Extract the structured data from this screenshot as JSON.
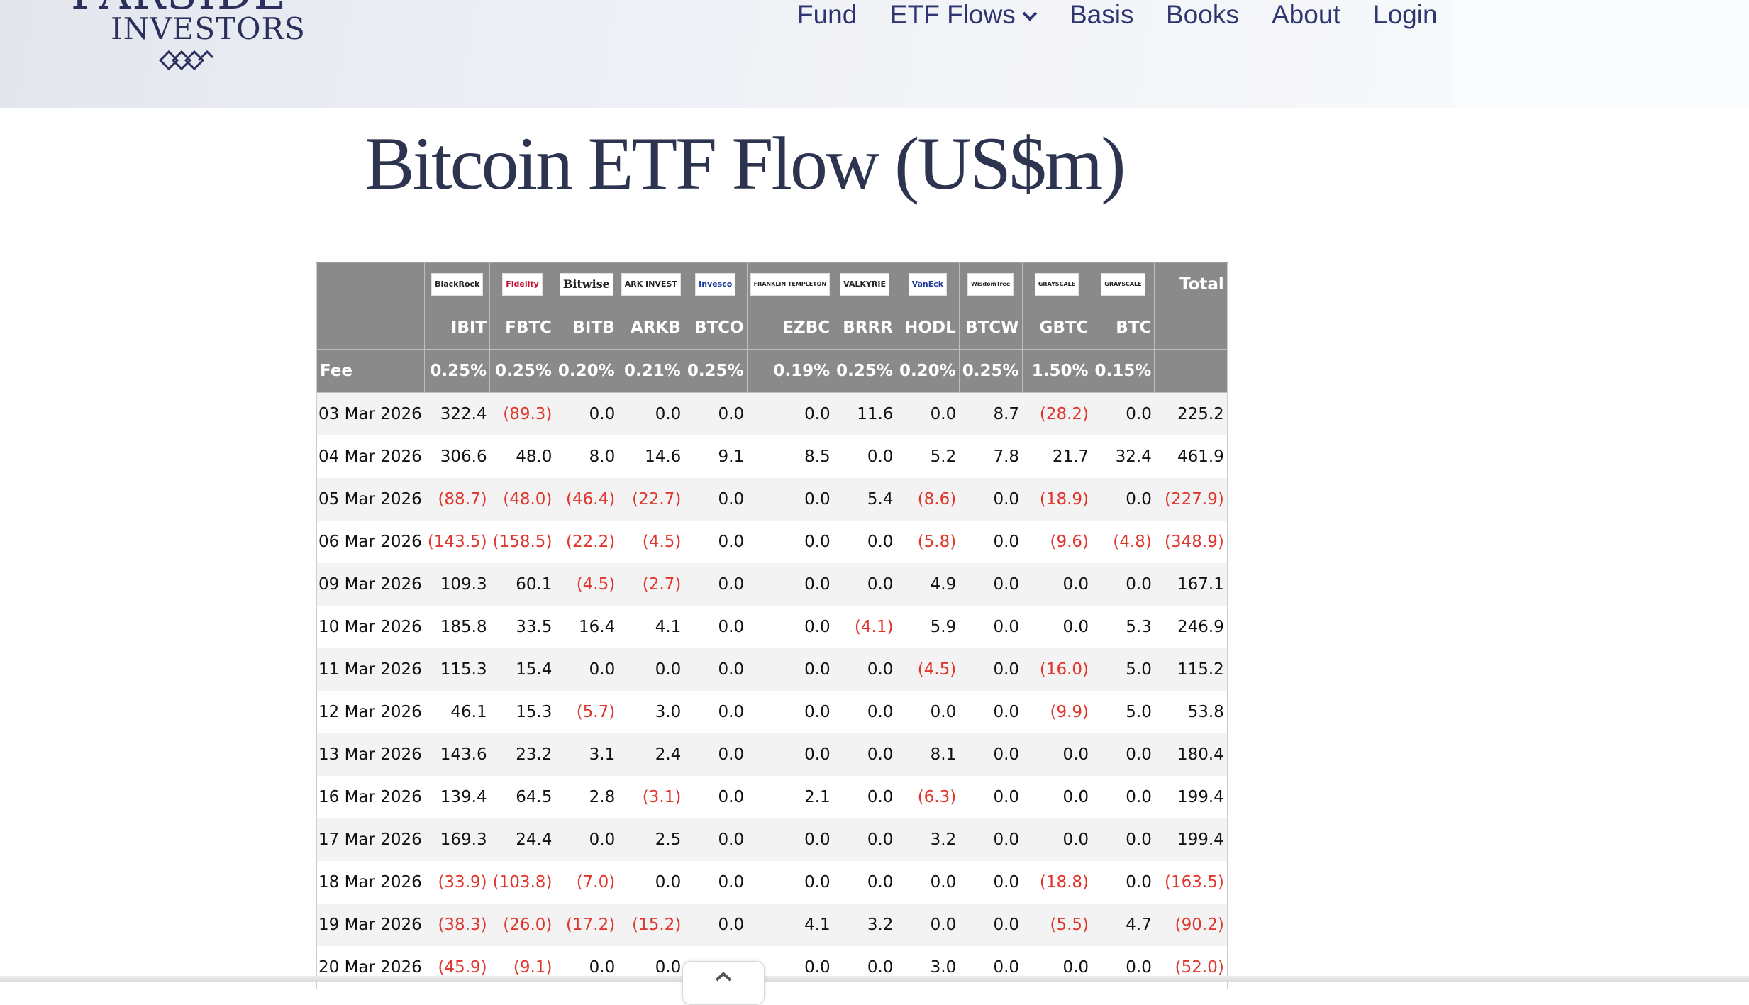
{
  "brand": {
    "name_top": "FARSIDE",
    "name_sub": "INVESTORS"
  },
  "nav": [
    {
      "label": "Fund"
    },
    {
      "label": "ETF Flows",
      "has_dropdown": true
    },
    {
      "label": "Basis"
    },
    {
      "label": "Books"
    },
    {
      "label": "About"
    },
    {
      "label": "Login"
    }
  ],
  "page_title": "Bitcoin ETF Flow (US$m)",
  "table": {
    "issuers": [
      "BlackRock",
      "Fidelity",
      "Bitwise",
      "ARK INVEST",
      "Invesco",
      "FRANKLIN TEMPLETON",
      "VALKYRIE",
      "VanEck",
      "WisdomTree",
      "GRAYSCALE",
      "GRAYSCALE"
    ],
    "total_label": "Total",
    "tickers": [
      "IBIT",
      "FBTC",
      "BITB",
      "ARKB",
      "BTCO",
      "EZBC",
      "BRRR",
      "HODL",
      "BTCW",
      "GBTC",
      "BTC"
    ],
    "fee_label": "Fee",
    "fees": [
      "0.25%",
      "0.25%",
      "0.20%",
      "0.21%",
      "0.25%",
      "0.19%",
      "0.25%",
      "0.20%",
      "0.25%",
      "1.50%",
      "0.15%"
    ],
    "rows": [
      {
        "date": "03 Mar 2026",
        "values": [
          "322.4",
          "(89.3)",
          "0.0",
          "0.0",
          "0.0",
          "0.0",
          "11.6",
          "0.0",
          "8.7",
          "(28.2)",
          "0.0"
        ],
        "total": "225.2"
      },
      {
        "date": "04 Mar 2026",
        "values": [
          "306.6",
          "48.0",
          "8.0",
          "14.6",
          "9.1",
          "8.5",
          "0.0",
          "5.2",
          "7.8",
          "21.7",
          "32.4"
        ],
        "total": "461.9"
      },
      {
        "date": "05 Mar 2026",
        "values": [
          "(88.7)",
          "(48.0)",
          "(46.4)",
          "(22.7)",
          "0.0",
          "0.0",
          "5.4",
          "(8.6)",
          "0.0",
          "(18.9)",
          "0.0"
        ],
        "total": "(227.9)"
      },
      {
        "date": "06 Mar 2026",
        "values": [
          "(143.5)",
          "(158.5)",
          "(22.2)",
          "(4.5)",
          "0.0",
          "0.0",
          "0.0",
          "(5.8)",
          "0.0",
          "(9.6)",
          "(4.8)"
        ],
        "total": "(348.9)"
      },
      {
        "date": "09 Mar 2026",
        "values": [
          "109.3",
          "60.1",
          "(4.5)",
          "(2.7)",
          "0.0",
          "0.0",
          "0.0",
          "4.9",
          "0.0",
          "0.0",
          "0.0"
        ],
        "total": "167.1"
      },
      {
        "date": "10 Mar 2026",
        "values": [
          "185.8",
          "33.5",
          "16.4",
          "4.1",
          "0.0",
          "0.0",
          "(4.1)",
          "5.9",
          "0.0",
          "0.0",
          "5.3"
        ],
        "total": "246.9"
      },
      {
        "date": "11 Mar 2026",
        "values": [
          "115.3",
          "15.4",
          "0.0",
          "0.0",
          "0.0",
          "0.0",
          "0.0",
          "(4.5)",
          "0.0",
          "(16.0)",
          "5.0"
        ],
        "total": "115.2"
      },
      {
        "date": "12 Mar 2026",
        "values": [
          "46.1",
          "15.3",
          "(5.7)",
          "3.0",
          "0.0",
          "0.0",
          "0.0",
          "0.0",
          "0.0",
          "(9.9)",
          "5.0"
        ],
        "total": "53.8"
      },
      {
        "date": "13 Mar 2026",
        "values": [
          "143.6",
          "23.2",
          "3.1",
          "2.4",
          "0.0",
          "0.0",
          "0.0",
          "8.1",
          "0.0",
          "0.0",
          "0.0"
        ],
        "total": "180.4"
      },
      {
        "date": "16 Mar 2026",
        "values": [
          "139.4",
          "64.5",
          "2.8",
          "(3.1)",
          "0.0",
          "2.1",
          "0.0",
          "(6.3)",
          "0.0",
          "0.0",
          "0.0"
        ],
        "total": "199.4"
      },
      {
        "date": "17 Mar 2026",
        "values": [
          "169.3",
          "24.4",
          "0.0",
          "2.5",
          "0.0",
          "0.0",
          "0.0",
          "3.2",
          "0.0",
          "0.0",
          "0.0"
        ],
        "total": "199.4"
      },
      {
        "date": "18 Mar 2026",
        "values": [
          "(33.9)",
          "(103.8)",
          "(7.0)",
          "0.0",
          "0.0",
          "0.0",
          "0.0",
          "0.0",
          "0.0",
          "(18.8)",
          "0.0"
        ],
        "total": "(163.5)"
      },
      {
        "date": "19 Mar 2026",
        "values": [
          "(38.3)",
          "(26.0)",
          "(17.2)",
          "(15.2)",
          "0.0",
          "4.1",
          "3.2",
          "0.0",
          "0.0",
          "(5.5)",
          "4.7"
        ],
        "total": "(90.2)"
      },
      {
        "date": "20 Mar 2026",
        "values": [
          "(45.9)",
          "(9.1)",
          "0.0",
          "0.0",
          "",
          "0.0",
          "0.0",
          "3.0",
          "0.0",
          "0.0",
          "0.0"
        ],
        "total": "(52.0)"
      }
    ]
  },
  "colors": {
    "negative": "#e0352b",
    "header_bg": "#8a8a8a",
    "nav_text": "#2e3570",
    "title_text": "#2d3450"
  },
  "icons": {
    "dropdown": "chevron-down-icon",
    "scroll_top": "chevron-up-icon",
    "logo_mark": "diamond-lattice-icon"
  }
}
